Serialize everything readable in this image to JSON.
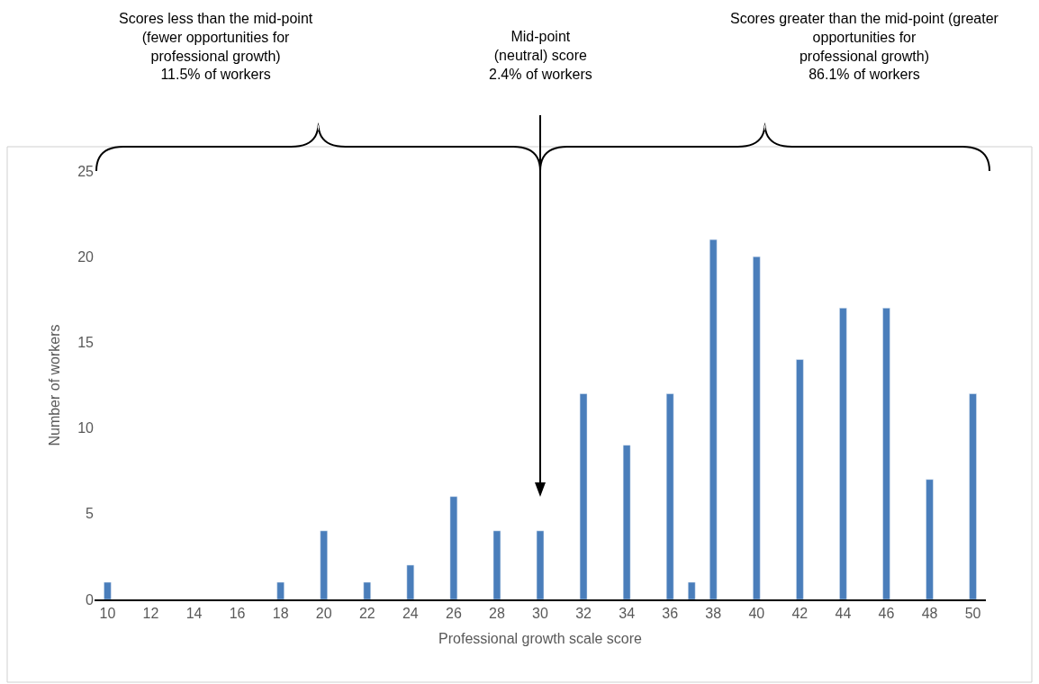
{
  "chart_data": {
    "type": "bar",
    "x": [
      10,
      18,
      20,
      22,
      24,
      26,
      28,
      30,
      32,
      34,
      36,
      37,
      38,
      40,
      42,
      44,
      46,
      48,
      50
    ],
    "values": [
      1,
      1,
      4,
      1,
      2,
      6,
      4,
      4,
      12,
      9,
      12,
      1,
      21,
      20,
      14,
      17,
      17,
      7,
      12
    ],
    "color": "#4a7ebb",
    "xlabel": "Professional growth scale score",
    "ylabel": "Number of workers",
    "xlim": [
      9.4,
      50.6
    ],
    "xticks": [
      10,
      12,
      14,
      16,
      18,
      20,
      22,
      24,
      26,
      28,
      30,
      32,
      34,
      36,
      38,
      40,
      42,
      44,
      46,
      48,
      50
    ],
    "ylim": [
      0,
      25
    ],
    "yticks": [
      0,
      5,
      10,
      15,
      20,
      25
    ],
    "annotations": [
      "Scores less than the mid-point\n(fewer opportunities for\nprofessional growth)\n11.5% of workers",
      "Mid-point\n(neutral) score\n2.4% of workers",
      "Scores greater than the mid-point (greater\nopportunities for\nprofessional growth)\n86.1% of workers"
    ]
  }
}
